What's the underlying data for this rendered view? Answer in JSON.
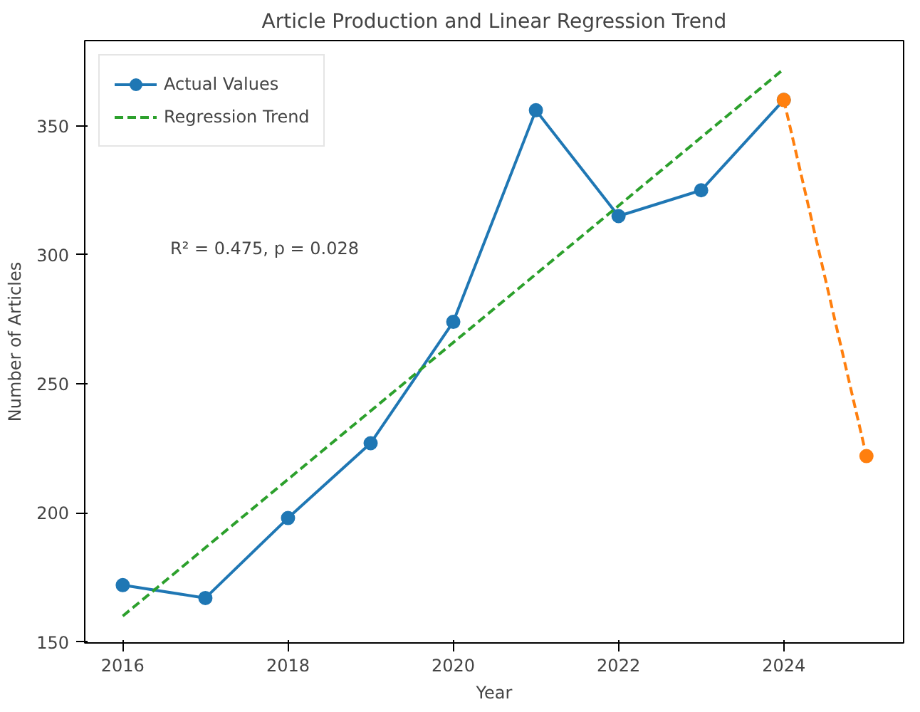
{
  "chart_data": {
    "type": "line",
    "title": "Article Production and Linear Regression Trend",
    "xlabel": "Year",
    "ylabel": "Number of Articles",
    "xlim": [
      2015.54,
      2025.45
    ],
    "ylim": [
      149.6,
      383
    ],
    "xticks": [
      2016,
      2018,
      2020,
      2022,
      2024
    ],
    "yticks": [
      150,
      200,
      250,
      300,
      350
    ],
    "series": [
      {
        "name": "Actual Values",
        "color": "#1f77b4",
        "marker": "circle",
        "line_style": "solid",
        "x": [
          2016,
          2017,
          2018,
          2019,
          2020,
          2021,
          2022,
          2023,
          2024
        ],
        "values": [
          172,
          167,
          198,
          227,
          274,
          356,
          315,
          325,
          360
        ]
      },
      {
        "name": "Regression Trend",
        "color": "#2ca02c",
        "marker": "none",
        "line_style": "dashed",
        "x": [
          2016,
          2024
        ],
        "values": [
          160,
          372
        ]
      },
      {
        "color": "#ff7f0e",
        "marker": "circle",
        "line_style": "dashed",
        "x": [
          2024,
          2025
        ],
        "values": [
          360,
          222
        ]
      }
    ],
    "annotations": [
      "R² = 0.475, p = 0.028"
    ],
    "legend": "top left",
    "grid": false
  }
}
